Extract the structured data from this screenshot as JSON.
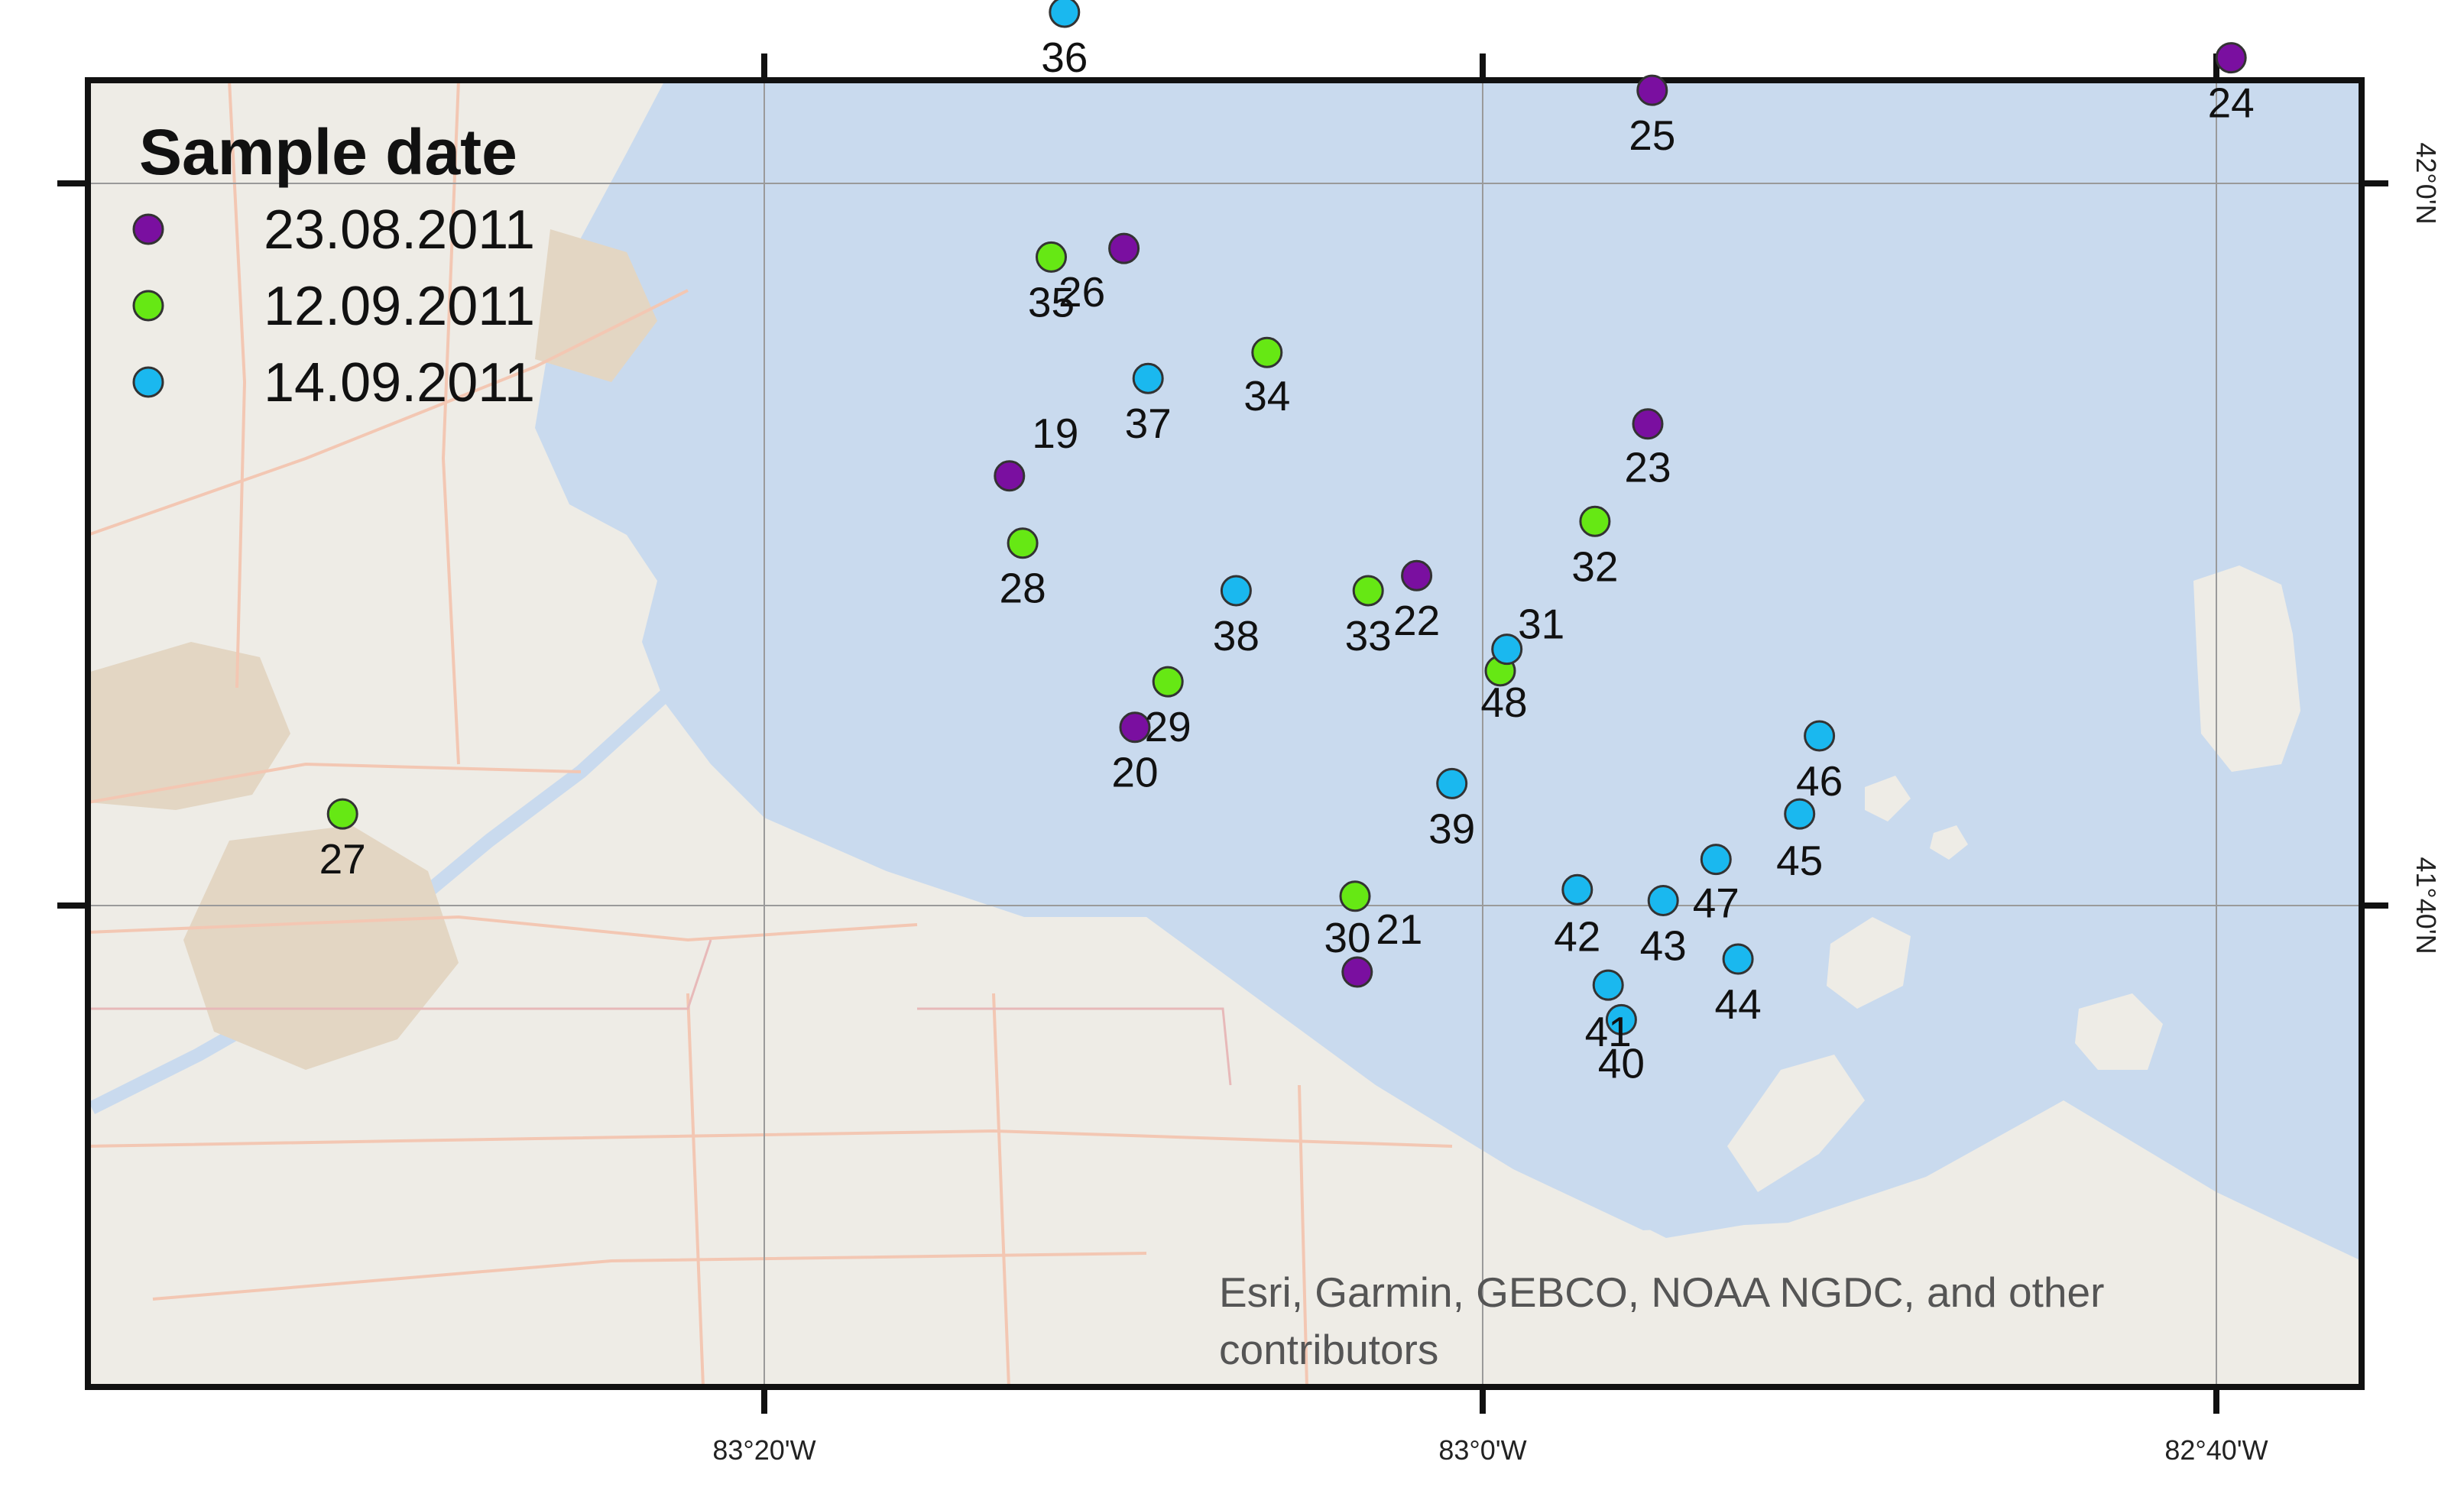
{
  "legend": {
    "title": "Sample date",
    "entries": [
      {
        "label": "23.08.2011",
        "color": "#7a0fa0"
      },
      {
        "label": "12.09.2011",
        "color": "#66e814"
      },
      {
        "label": "14.09.2011",
        "color": "#1ab8ef"
      }
    ]
  },
  "axes": {
    "x_ticks": [
      "83°20'W",
      "83°0'W",
      "82°40'W"
    ],
    "y_ticks": [
      "42°0'N",
      "41°40'N"
    ]
  },
  "credit": {
    "line1": "Esri, Garmin, GEBCO, NOAA NGDC, and other",
    "line2": "contributors"
  },
  "colors": {
    "water": "#c9daee",
    "land": "#eeece6",
    "urban": "#e3d6c3",
    "road": "#f3c7b3",
    "frame": "#111111"
  },
  "stations": [
    {
      "id": "19",
      "date": "23.08.2011",
      "lon": -83.215,
      "lat": 41.865
    },
    {
      "id": "20",
      "date": "23.08.2011",
      "lon": -83.158,
      "lat": 41.749
    },
    {
      "id": "21",
      "date": "23.08.2011",
      "lon": -83.057,
      "lat": 41.636
    },
    {
      "id": "22",
      "date": "23.08.2011",
      "lon": -83.03,
      "lat": 41.819
    },
    {
      "id": "23",
      "date": "23.08.2011",
      "lon": -82.925,
      "lat": 41.889
    },
    {
      "id": "24",
      "date": "23.08.2011",
      "lon": -82.66,
      "lat": 42.058
    },
    {
      "id": "25",
      "date": "23.08.2011",
      "lon": -82.923,
      "lat": 42.043
    },
    {
      "id": "26",
      "date": "23.08.2011",
      "lon": -83.163,
      "lat": 41.97
    },
    {
      "id": "27",
      "date": "12.09.2011",
      "lon": -83.518,
      "lat": 41.709
    },
    {
      "id": "28",
      "date": "12.09.2011",
      "lon": -83.209,
      "lat": 41.834
    },
    {
      "id": "29",
      "date": "12.09.2011",
      "lon": -83.143,
      "lat": 41.77
    },
    {
      "id": "30",
      "date": "12.09.2011",
      "lon": -83.058,
      "lat": 41.671
    },
    {
      "id": "32",
      "date": "12.09.2011",
      "lon": -82.949,
      "lat": 41.844
    },
    {
      "id": "33",
      "date": "12.09.2011",
      "lon": -83.052,
      "lat": 41.812
    },
    {
      "id": "34",
      "date": "12.09.2011",
      "lon": -83.098,
      "lat": 41.922
    },
    {
      "id": "35",
      "date": "12.09.2011",
      "lon": -83.196,
      "lat": 41.966
    },
    {
      "id": "48",
      "date": "12.09.2011",
      "lon": -82.992,
      "lat": 41.775
    },
    {
      "id": "31",
      "date": "14.09.2011",
      "lon": -82.989,
      "lat": 41.785
    },
    {
      "id": "36",
      "date": "14.09.2011",
      "lon": -83.19,
      "lat": 42.079
    },
    {
      "id": "37",
      "date": "14.09.2011",
      "lon": -83.152,
      "lat": 41.91
    },
    {
      "id": "38",
      "date": "14.09.2011",
      "lon": -83.112,
      "lat": 41.812
    },
    {
      "id": "39",
      "date": "14.09.2011",
      "lon": -83.014,
      "lat": 41.723
    },
    {
      "id": "40",
      "date": "14.09.2011",
      "lon": -82.937,
      "lat": 41.614
    },
    {
      "id": "41",
      "date": "14.09.2011",
      "lon": -82.943,
      "lat": 41.63
    },
    {
      "id": "42",
      "date": "14.09.2011",
      "lon": -82.957,
      "lat": 41.674
    },
    {
      "id": "43",
      "date": "14.09.2011",
      "lon": -82.918,
      "lat": 41.669
    },
    {
      "id": "44",
      "date": "14.09.2011",
      "lon": -82.884,
      "lat": 41.642
    },
    {
      "id": "45",
      "date": "14.09.2011",
      "lon": -82.856,
      "lat": 41.709
    },
    {
      "id": "46",
      "date": "14.09.2011",
      "lon": -82.847,
      "lat": 41.745
    },
    {
      "id": "47",
      "date": "14.09.2011",
      "lon": -82.894,
      "lat": 41.688
    }
  ]
}
